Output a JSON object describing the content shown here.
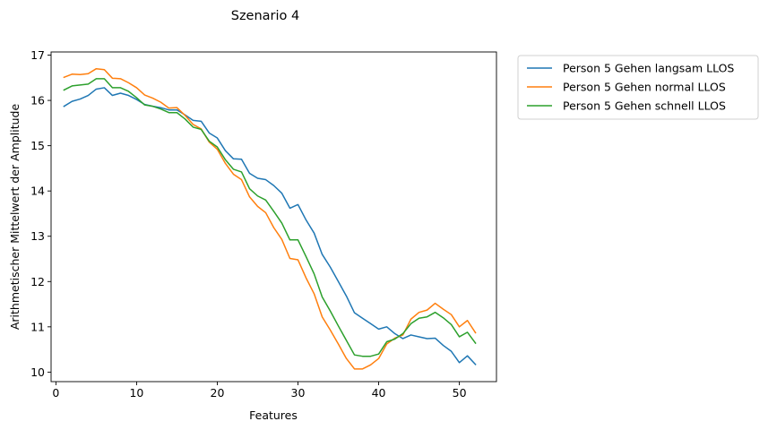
{
  "chart_data": {
    "type": "line",
    "title": "Szenario  4",
    "xlabel": "Features",
    "ylabel": "Arithmetischer Mittelwert der Amplitude",
    "xlim": [
      -0.6,
      54.6
    ],
    "ylim": [
      9.79,
      17.07
    ],
    "xticks": [
      0,
      10,
      20,
      30,
      40,
      50
    ],
    "yticks": [
      10,
      11,
      12,
      13,
      14,
      15,
      16,
      17
    ],
    "grid": false,
    "legend_position": "outside-top-right",
    "x": [
      1,
      2,
      3,
      4,
      5,
      6,
      7,
      8,
      9,
      10,
      11,
      12,
      13,
      14,
      15,
      16,
      17,
      18,
      19,
      20,
      21,
      22,
      23,
      24,
      25,
      26,
      27,
      28,
      29,
      30,
      31,
      32,
      33,
      34,
      35,
      36,
      37,
      38,
      39,
      40,
      41,
      42,
      43,
      44,
      45,
      46,
      47,
      48,
      49,
      50,
      51,
      52
    ],
    "series": [
      {
        "name": "Person 5 Gehen langsam LLOS",
        "color": "#1f77b4",
        "values": [
          15.87,
          15.98,
          16.03,
          16.11,
          16.25,
          16.28,
          16.11,
          16.16,
          16.11,
          16.02,
          15.91,
          15.87,
          15.84,
          15.79,
          15.79,
          15.68,
          15.56,
          15.54,
          15.28,
          15.17,
          14.89,
          14.71,
          14.7,
          14.39,
          14.28,
          14.25,
          14.12,
          13.95,
          13.62,
          13.7,
          13.36,
          13.07,
          12.6,
          12.32,
          12.0,
          11.68,
          11.31,
          11.19,
          11.07,
          10.95,
          11.0,
          10.85,
          10.74,
          10.82,
          10.78,
          10.74,
          10.75,
          10.59,
          10.46,
          10.21,
          10.36,
          10.17
        ]
      },
      {
        "name": "Person 5 Gehen normal LLOS",
        "color": "#ff7f0e",
        "values": [
          16.51,
          16.58,
          16.57,
          16.59,
          16.7,
          16.68,
          16.49,
          16.48,
          16.39,
          16.28,
          16.12,
          16.05,
          15.96,
          15.83,
          15.84,
          15.67,
          15.47,
          15.37,
          15.08,
          14.92,
          14.61,
          14.37,
          14.25,
          13.87,
          13.66,
          13.52,
          13.19,
          12.93,
          12.51,
          12.48,
          12.08,
          11.73,
          11.22,
          10.93,
          10.62,
          10.3,
          10.07,
          10.07,
          10.16,
          10.3,
          10.62,
          10.75,
          10.82,
          11.17,
          11.32,
          11.37,
          11.52,
          11.39,
          11.27,
          11.0,
          11.14,
          10.87
        ]
      },
      {
        "name": "Person 5 Gehen schnell LLOS",
        "color": "#2ca02c",
        "values": [
          16.23,
          16.32,
          16.34,
          16.36,
          16.48,
          16.48,
          16.28,
          16.28,
          16.2,
          16.06,
          15.9,
          15.87,
          15.81,
          15.73,
          15.73,
          15.59,
          15.41,
          15.36,
          15.1,
          14.97,
          14.69,
          14.48,
          14.42,
          14.05,
          13.89,
          13.8,
          13.55,
          13.29,
          12.92,
          12.92,
          12.55,
          12.17,
          11.66,
          11.35,
          11.02,
          10.7,
          10.38,
          10.35,
          10.35,
          10.4,
          10.67,
          10.73,
          10.85,
          11.07,
          11.19,
          11.22,
          11.32,
          11.2,
          11.05,
          10.78,
          10.88,
          10.64
        ]
      }
    ]
  }
}
